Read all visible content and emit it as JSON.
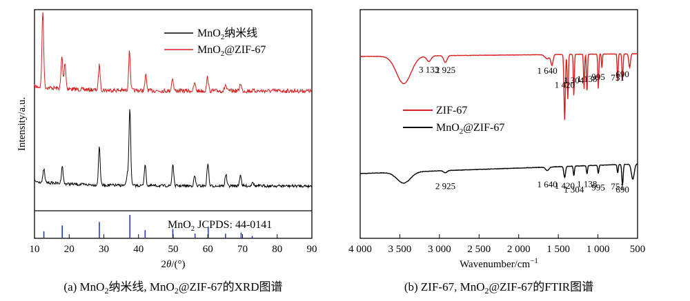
{
  "chart_data": [
    {
      "type": "line",
      "panel": "a",
      "caption_parts": [
        "(a) MnO",
        "2",
        "纳米线, MnO",
        "2",
        "@ZIF-67的XRD图谱"
      ],
      "xlabel_parts": [
        "2",
        "θ",
        "/(°)"
      ],
      "ylabel": "Intensity/a.u.",
      "xlim": [
        10,
        90
      ],
      "xticks": [
        "10",
        "20",
        "30",
        "40",
        "50",
        "60",
        "70",
        "80",
        "90"
      ],
      "legend": {
        "placement": "top-right",
        "entries": [
          {
            "color": "#000000",
            "parts": [
              "MnO",
              "2",
              "纳米线"
            ]
          },
          {
            "color": "#d62020",
            "parts": [
              "MnO",
              "2",
              "@ZIF-67"
            ]
          }
        ]
      },
      "reference_label_parts": [
        "MnO",
        "2",
        " JCPDS: 44-0141"
      ],
      "series": [
        {
          "color": "#d62020",
          "peaks": [
            [
              12.4,
              1.0
            ],
            [
              17.9,
              0.42
            ],
            [
              18.8,
              0.35
            ],
            [
              28.7,
              0.33
            ],
            [
              37.4,
              0.52
            ],
            [
              42.1,
              0.2
            ],
            [
              49.8,
              0.17
            ],
            [
              56.2,
              0.1
            ],
            [
              59.9,
              0.18
            ],
            [
              65.1,
              0.08
            ],
            [
              69.4,
              0.1
            ]
          ]
        },
        {
          "color": "#000000",
          "peaks": [
            [
              12.7,
              0.17
            ],
            [
              18.0,
              0.23
            ],
            [
              28.7,
              0.5
            ],
            [
              36.8,
              0.15
            ],
            [
              37.5,
              1.0
            ],
            [
              41.9,
              0.28
            ],
            [
              49.9,
              0.28
            ],
            [
              56.2,
              0.13
            ],
            [
              60.0,
              0.3
            ],
            [
              65.2,
              0.15
            ],
            [
              69.4,
              0.15
            ],
            [
              72.9,
              0.06
            ]
          ]
        }
      ],
      "reference_sticks": [
        [
          12.7,
          0.3
        ],
        [
          18.0,
          0.55
        ],
        [
          28.7,
          0.7
        ],
        [
          37.5,
          1.0
        ],
        [
          41.9,
          0.35
        ],
        [
          49.9,
          0.4
        ],
        [
          56.3,
          0.2
        ],
        [
          60.1,
          0.45
        ],
        [
          65.1,
          0.2
        ],
        [
          69.6,
          0.25
        ],
        [
          72.8,
          0.1
        ]
      ]
    },
    {
      "type": "line",
      "panel": "b",
      "caption_parts": [
        "(b) ZIF-67, MnO",
        "2",
        "@ZIF-67的FTIR图谱"
      ],
      "xlabel_parts": [
        "Wavenumber/cm",
        "−1"
      ],
      "ylabel": "",
      "xlim": [
        4000,
        500
      ],
      "xticks": [
        "4 000",
        "3 500",
        "3 000",
        "2 500",
        "2 000",
        "1 500",
        "1 000",
        "500"
      ],
      "legend": {
        "placement": "center-left",
        "entries": [
          {
            "color": "#d62020",
            "parts": [
              "ZIF-67"
            ]
          },
          {
            "color": "#000000",
            "parts": [
              "MnO",
              "2",
              "@ZIF-67"
            ]
          }
        ]
      },
      "series": [
        {
          "color": "#d62020",
          "labels": [
            {
              "text": "3 133",
              "x": 3133,
              "y": 0.27
            },
            {
              "text": "2 925",
              "x": 2925,
              "y": 0.29
            },
            {
              "text": "1 640",
              "x": 1640,
              "y": 0.35
            },
            {
              "text": "1 420",
              "x": 1420,
              "y": 1.38
            },
            {
              "text": "1 304",
              "x": 1304,
              "y": 1.06
            },
            {
              "text": "1 138",
              "x": 1138,
              "y": 0.95
            },
            {
              "text": "995",
              "x": 995,
              "y": 0.8
            },
            {
              "text": "751",
              "x": 751,
              "y": 0.86
            },
            {
              "text": "690",
              "x": 690,
              "y": 0.6
            }
          ]
        },
        {
          "color": "#000000",
          "labels": [
            {
              "text": "2 925",
              "x": 2925,
              "y": 0.72
            },
            {
              "text": "1 640",
              "x": 1640,
              "y": 0.59
            },
            {
              "text": "1 420",
              "x": 1420,
              "y": 0.7
            },
            {
              "text": "1 304",
              "x": 1304,
              "y": 0.98
            },
            {
              "text": "1 138",
              "x": 1138,
              "y": 0.58
            },
            {
              "text": "995",
              "x": 995,
              "y": 0.83
            },
            {
              "text": "751",
              "x": 751,
              "y": 0.75
            },
            {
              "text": "690",
              "x": 690,
              "y": 0.98
            }
          ]
        }
      ]
    }
  ]
}
